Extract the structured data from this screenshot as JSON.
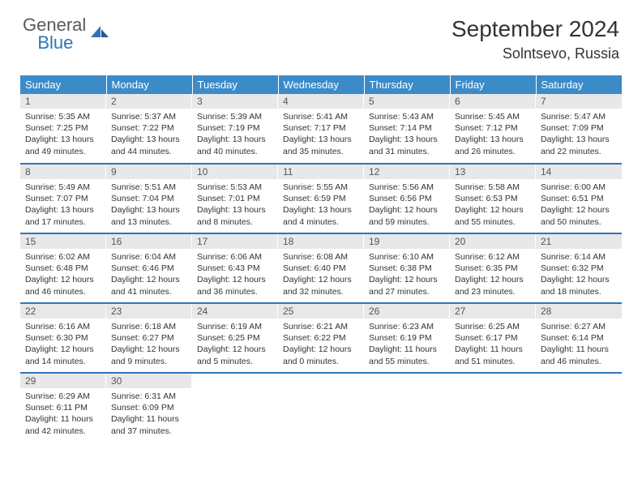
{
  "brand": {
    "name_a": "General",
    "name_b": "Blue"
  },
  "title": "September 2024",
  "location": "Solntsevo, Russia",
  "header_bg": "#3b8bc9",
  "divider_color": "#2e75b6",
  "daynum_bg": "#e8e8e8",
  "columns": [
    "Sunday",
    "Monday",
    "Tuesday",
    "Wednesday",
    "Thursday",
    "Friday",
    "Saturday"
  ],
  "weeks": [
    [
      {
        "n": "1",
        "sr": "5:35 AM",
        "ss": "7:25 PM",
        "dl": "13 hours and 49 minutes."
      },
      {
        "n": "2",
        "sr": "5:37 AM",
        "ss": "7:22 PM",
        "dl": "13 hours and 44 minutes."
      },
      {
        "n": "3",
        "sr": "5:39 AM",
        "ss": "7:19 PM",
        "dl": "13 hours and 40 minutes."
      },
      {
        "n": "4",
        "sr": "5:41 AM",
        "ss": "7:17 PM",
        "dl": "13 hours and 35 minutes."
      },
      {
        "n": "5",
        "sr": "5:43 AM",
        "ss": "7:14 PM",
        "dl": "13 hours and 31 minutes."
      },
      {
        "n": "6",
        "sr": "5:45 AM",
        "ss": "7:12 PM",
        "dl": "13 hours and 26 minutes."
      },
      {
        "n": "7",
        "sr": "5:47 AM",
        "ss": "7:09 PM",
        "dl": "13 hours and 22 minutes."
      }
    ],
    [
      {
        "n": "8",
        "sr": "5:49 AM",
        "ss": "7:07 PM",
        "dl": "13 hours and 17 minutes."
      },
      {
        "n": "9",
        "sr": "5:51 AM",
        "ss": "7:04 PM",
        "dl": "13 hours and 13 minutes."
      },
      {
        "n": "10",
        "sr": "5:53 AM",
        "ss": "7:01 PM",
        "dl": "13 hours and 8 minutes."
      },
      {
        "n": "11",
        "sr": "5:55 AM",
        "ss": "6:59 PM",
        "dl": "13 hours and 4 minutes."
      },
      {
        "n": "12",
        "sr": "5:56 AM",
        "ss": "6:56 PM",
        "dl": "12 hours and 59 minutes."
      },
      {
        "n": "13",
        "sr": "5:58 AM",
        "ss": "6:53 PM",
        "dl": "12 hours and 55 minutes."
      },
      {
        "n": "14",
        "sr": "6:00 AM",
        "ss": "6:51 PM",
        "dl": "12 hours and 50 minutes."
      }
    ],
    [
      {
        "n": "15",
        "sr": "6:02 AM",
        "ss": "6:48 PM",
        "dl": "12 hours and 46 minutes."
      },
      {
        "n": "16",
        "sr": "6:04 AM",
        "ss": "6:46 PM",
        "dl": "12 hours and 41 minutes."
      },
      {
        "n": "17",
        "sr": "6:06 AM",
        "ss": "6:43 PM",
        "dl": "12 hours and 36 minutes."
      },
      {
        "n": "18",
        "sr": "6:08 AM",
        "ss": "6:40 PM",
        "dl": "12 hours and 32 minutes."
      },
      {
        "n": "19",
        "sr": "6:10 AM",
        "ss": "6:38 PM",
        "dl": "12 hours and 27 minutes."
      },
      {
        "n": "20",
        "sr": "6:12 AM",
        "ss": "6:35 PM",
        "dl": "12 hours and 23 minutes."
      },
      {
        "n": "21",
        "sr": "6:14 AM",
        "ss": "6:32 PM",
        "dl": "12 hours and 18 minutes."
      }
    ],
    [
      {
        "n": "22",
        "sr": "6:16 AM",
        "ss": "6:30 PM",
        "dl": "12 hours and 14 minutes."
      },
      {
        "n": "23",
        "sr": "6:18 AM",
        "ss": "6:27 PM",
        "dl": "12 hours and 9 minutes."
      },
      {
        "n": "24",
        "sr": "6:19 AM",
        "ss": "6:25 PM",
        "dl": "12 hours and 5 minutes."
      },
      {
        "n": "25",
        "sr": "6:21 AM",
        "ss": "6:22 PM",
        "dl": "12 hours and 0 minutes."
      },
      {
        "n": "26",
        "sr": "6:23 AM",
        "ss": "6:19 PM",
        "dl": "11 hours and 55 minutes."
      },
      {
        "n": "27",
        "sr": "6:25 AM",
        "ss": "6:17 PM",
        "dl": "11 hours and 51 minutes."
      },
      {
        "n": "28",
        "sr": "6:27 AM",
        "ss": "6:14 PM",
        "dl": "11 hours and 46 minutes."
      }
    ],
    [
      {
        "n": "29",
        "sr": "6:29 AM",
        "ss": "6:11 PM",
        "dl": "11 hours and 42 minutes."
      },
      {
        "n": "30",
        "sr": "6:31 AM",
        "ss": "6:09 PM",
        "dl": "11 hours and 37 minutes."
      },
      null,
      null,
      null,
      null,
      null
    ]
  ],
  "labels": {
    "sunrise": "Sunrise:",
    "sunset": "Sunset:",
    "daylight": "Daylight:"
  }
}
